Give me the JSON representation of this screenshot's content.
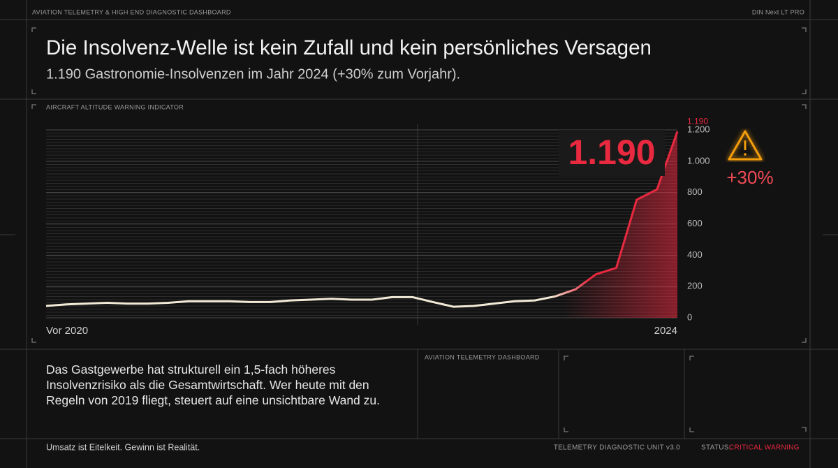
{
  "header": {
    "top_left": "AVIATION TELEMETRY & HIGH END DIAGNOSTIC DASHBOARD",
    "top_right": "DIN Next LT PRO",
    "title": "Die Insolvenz-Welle ist kein Zufall und kein persönliches Versagen",
    "subtitle": "1.190 Gastronomie-Insolvenzen im Jahr 2024 (+30% zum Vorjahr)."
  },
  "chart_data": {
    "type": "line",
    "panel_label": "AIRCRAFT ALTITUDE WARNING INDICATOR",
    "categories": [
      "Vor 2020",
      null,
      null,
      null,
      null,
      null,
      null,
      null,
      null,
      null,
      null,
      null,
      null,
      null,
      null,
      null,
      null,
      null,
      null,
      null,
      null,
      null,
      null,
      null,
      null,
      null,
      null,
      null,
      null,
      null,
      null,
      "2024"
    ],
    "series": [
      {
        "name": "Gastronomie-Insolvenzen",
        "color": "#f2ead6",
        "highlight_color": "#e8293f",
        "values": [
          76,
          86,
          91,
          96,
          91,
          91,
          96,
          106,
          106,
          106,
          101,
          101,
          111,
          116,
          122,
          116,
          116,
          132,
          132,
          101,
          71,
          76,
          91,
          106,
          111,
          137,
          182,
          278,
          319,
          754,
          820,
          1190
        ],
        "value_labels": [
          null,
          null,
          null,
          null,
          null,
          null,
          null,
          null,
          null,
          null,
          null,
          null,
          null,
          null,
          null,
          null,
          null,
          null,
          null,
          null,
          null,
          null,
          null,
          null,
          null,
          null,
          null,
          null,
          null,
          null,
          null,
          "1.190"
        ]
      }
    ],
    "ylim": [
      0,
      1200
    ],
    "yticks": [
      0,
      200,
      400,
      600,
      800,
      {
        "value": 1000,
        "label": "1.000"
      },
      {
        "value": 1200,
        "label": "1.200"
      }
    ],
    "grid": true,
    "annotations": {
      "big_value": "1.190",
      "change": "+30%"
    }
  },
  "body": {
    "text": "Das Gastgewerbe hat strukturell ein 1,5-fach höheres Insolvenzrisiko als die Gesamtwirtschaft. Wer heute mit den Regeln von 2019 fliegt, steuert auf eine unsichtbare Wand zu.",
    "panel_label": "AVIATION TELEMETRY DASHBOARD"
  },
  "footer": {
    "left": "Umsatz ist Eitelkeit. Gewinn ist Realität.",
    "unit": "TELEMETRY DIAGNOSTIC UNIT v3.0",
    "status_label": "STATUS:",
    "status_value": "CRITICAL WARNING"
  }
}
